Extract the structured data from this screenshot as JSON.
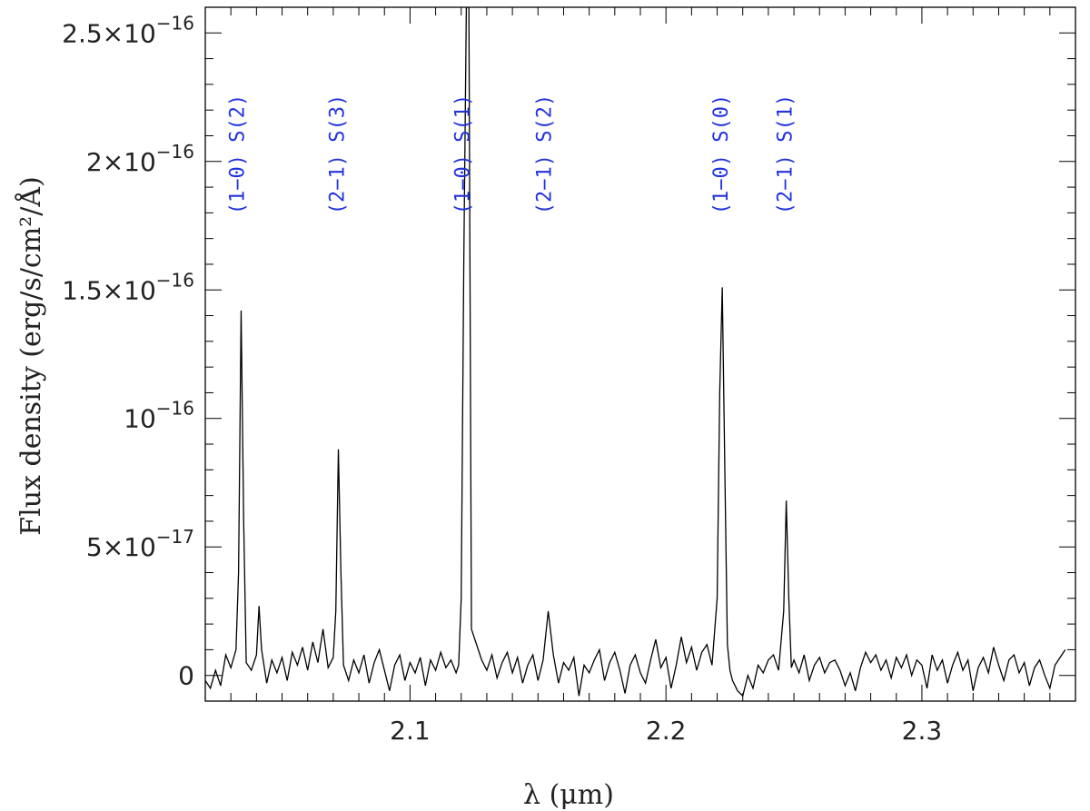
{
  "chart_data": {
    "type": "line",
    "title": "",
    "xlabel": "λ (μm)",
    "ylabel": "Flux density (erg/s/cm²/Å)",
    "xlim": [
      2.02,
      2.36
    ],
    "ylim": [
      -1e-17,
      2.6e-16
    ],
    "x_ticks": [
      {
        "value": 2.1,
        "label": "2.1"
      },
      {
        "value": 2.2,
        "label": "2.2"
      },
      {
        "value": 2.3,
        "label": "2.3"
      }
    ],
    "y_ticks": [
      {
        "value": 0,
        "mant": "0",
        "exp": ""
      },
      {
        "value": 5e-17,
        "mant": "5×10",
        "exp": "−17"
      },
      {
        "value": 1e-16,
        "mant": "10",
        "exp": "−16"
      },
      {
        "value": 1.5e-16,
        "mant": "1.5×10",
        "exp": "−16"
      },
      {
        "value": 2e-16,
        "mant": "2×10",
        "exp": "−16"
      },
      {
        "value": 2.5e-16,
        "mant": "2.5×10",
        "exp": "−16"
      }
    ],
    "grid": false,
    "series": [
      {
        "color": "#000000",
        "x": [
          2.02,
          2.022,
          2.024,
          2.026,
          2.028,
          2.03,
          2.032,
          2.033,
          2.034,
          2.035,
          2.036,
          2.038,
          2.04,
          2.041,
          2.042,
          2.044,
          2.046,
          2.048,
          2.05,
          2.052,
          2.054,
          2.056,
          2.058,
          2.06,
          2.062,
          2.064,
          2.066,
          2.068,
          2.07,
          2.071,
          2.072,
          2.073,
          2.074,
          2.076,
          2.078,
          2.08,
          2.082,
          2.084,
          2.086,
          2.088,
          2.09,
          2.092,
          2.094,
          2.096,
          2.098,
          2.1,
          2.102,
          2.104,
          2.106,
          2.108,
          2.11,
          2.112,
          2.114,
          2.116,
          2.118,
          2.119,
          2.12,
          2.121,
          2.122,
          2.123,
          2.124,
          2.126,
          2.128,
          2.13,
          2.132,
          2.134,
          2.136,
          2.138,
          2.14,
          2.142,
          2.144,
          2.146,
          2.148,
          2.15,
          2.152,
          2.154,
          2.156,
          2.158,
          2.16,
          2.162,
          2.164,
          2.166,
          2.168,
          2.17,
          2.172,
          2.174,
          2.176,
          2.178,
          2.18,
          2.182,
          2.184,
          2.186,
          2.188,
          2.19,
          2.192,
          2.194,
          2.196,
          2.198,
          2.2,
          2.202,
          2.204,
          2.206,
          2.208,
          2.21,
          2.212,
          2.214,
          2.216,
          2.218,
          2.22,
          2.221,
          2.222,
          2.223,
          2.224,
          2.225,
          2.226,
          2.228,
          2.23,
          2.232,
          2.234,
          2.236,
          2.238,
          2.24,
          2.242,
          2.244,
          2.246,
          2.247,
          2.248,
          2.249,
          2.25,
          2.252,
          2.254,
          2.256,
          2.258,
          2.26,
          2.262,
          2.264,
          2.266,
          2.268,
          2.27,
          2.272,
          2.274,
          2.276,
          2.278,
          2.28,
          2.282,
          2.284,
          2.286,
          2.288,
          2.29,
          2.292,
          2.294,
          2.296,
          2.298,
          2.3,
          2.302,
          2.304,
          2.306,
          2.308,
          2.31,
          2.312,
          2.314,
          2.316,
          2.318,
          2.32,
          2.322,
          2.324,
          2.326,
          2.328,
          2.33,
          2.332,
          2.334,
          2.336,
          2.338,
          2.34,
          2.342,
          2.344,
          2.346,
          2.348,
          2.35,
          2.352,
          2.354,
          2.356
        ],
        "y": [
          -2e-18,
          -5e-18,
          2e-18,
          -4e-18,
          8e-18,
          3e-18,
          1e-17,
          4e-17,
          1.42e-16,
          6e-17,
          5e-18,
          2e-18,
          8e-18,
          2.7e-17,
          1e-17,
          -3e-18,
          6e-18,
          1e-18,
          7e-18,
          -2e-18,
          9e-18,
          4e-18,
          1.1e-17,
          2e-18,
          1.3e-17,
          5e-18,
          1.8e-17,
          3e-18,
          7e-18,
          2.5e-17,
          8.8e-17,
          4e-17,
          4e-18,
          -2e-18,
          6e-18,
          1e-18,
          8e-18,
          -3e-18,
          5e-18,
          1e-17,
          2e-18,
          -6e-18,
          4e-18,
          8e-18,
          -2e-18,
          5e-18,
          1e-18,
          7e-18,
          -4e-18,
          6e-18,
          2e-18,
          9e-18,
          3e-18,
          6e-18,
          1e-18,
          4e-18,
          3e-17,
          1.6e-16,
          2.6e-16,
          2.6e-16,
          1.8e-17,
          1.2e-17,
          6e-18,
          2e-18,
          8e-18,
          -1e-18,
          5e-18,
          9e-18,
          1e-18,
          7e-18,
          -3e-18,
          4e-18,
          8e-18,
          -2e-18,
          6e-18,
          2.5e-17,
          8e-18,
          -3e-18,
          5e-18,
          2e-18,
          7e-18,
          -8e-18,
          4e-18,
          1e-18,
          6e-18,
          1e-17,
          -2e-18,
          5e-18,
          9e-18,
          2e-18,
          -7e-18,
          4e-18,
          8e-18,
          1e-18,
          -3e-18,
          6e-18,
          1.4e-17,
          3e-18,
          7e-18,
          -5e-18,
          4e-18,
          1.5e-17,
          5e-18,
          1.1e-17,
          2e-18,
          9e-18,
          1.2e-17,
          4e-18,
          3e-17,
          1.1e-16,
          1.51e-16,
          8e-17,
          1.2e-17,
          2e-18,
          -2e-18,
          -6e-18,
          -8e-18,
          0.0,
          -5e-18,
          4e-18,
          1e-18,
          6e-18,
          8e-18,
          2e-18,
          2.5e-17,
          6.8e-17,
          3e-17,
          3e-18,
          6e-18,
          1e-18,
          8e-18,
          -2e-18,
          4e-18,
          7e-18,
          1e-18,
          5e-18,
          6e-18,
          2e-18,
          -4e-18,
          1e-18,
          -6e-18,
          3e-18,
          9e-18,
          5e-18,
          8e-18,
          2e-18,
          6e-18,
          -1e-18,
          7e-18,
          3e-18,
          8e-18,
          0.0,
          6e-18,
          4e-18,
          -5e-18,
          8e-18,
          2e-18,
          6e-18,
          -3e-18,
          4e-18,
          9e-18,
          2e-18,
          6e-18,
          -6e-18,
          3e-18,
          7e-18,
          1e-18,
          1.1e-17,
          4e-18,
          -2e-18,
          6e-18,
          8e-18,
          1e-18,
          5e-18,
          -4e-18,
          3e-18,
          6e-18,
          0.0,
          -5e-18,
          4e-18,
          7e-18,
          1e-17
        ]
      }
    ],
    "annotations": [
      {
        "x": 2.034,
        "text": "(1−0) S(2)"
      },
      {
        "x": 2.073,
        "text": "(2−1) S(3)"
      },
      {
        "x": 2.122,
        "text": "(1−0) S(1)"
      },
      {
        "x": 2.154,
        "text": "(2−1) S(2)"
      },
      {
        "x": 2.223,
        "text": "(1−0) S(0)"
      },
      {
        "x": 2.248,
        "text": "(2−1) S(1)"
      }
    ]
  }
}
